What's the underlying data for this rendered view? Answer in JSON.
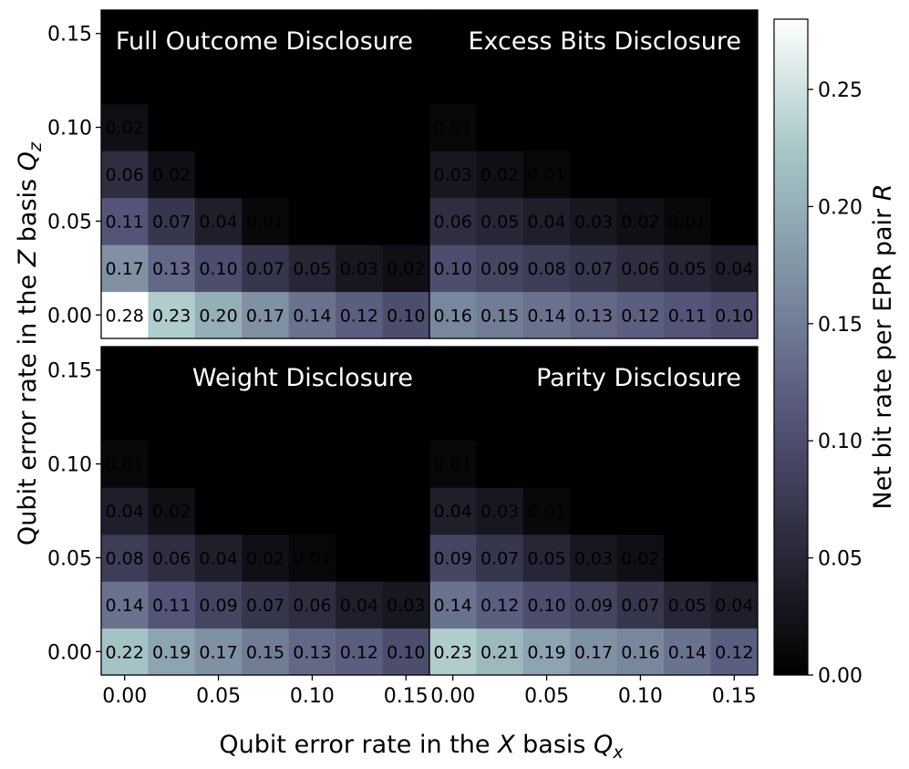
{
  "chart_data": {
    "type": "heatmap",
    "x_ticks": [
      "0.00",
      "0.05",
      "0.10",
      "0.15"
    ],
    "y_ticks": [
      "0.00",
      "0.05",
      "0.10",
      "0.15"
    ],
    "xlabel_prefix": "Qubit error rate in the ",
    "xlabel_var": "X",
    "xlabel_mid": " basis ",
    "xlabel_sym": "Q",
    "xlabel_sub": "x",
    "ylabel_prefix": "Qubit error rate in the ",
    "ylabel_var": "Z",
    "ylabel_mid": " basis ",
    "ylabel_sym": "Q",
    "ylabel_sub": "z",
    "colorbar": {
      "label_text": "Net bit rate per EPR pair ",
      "label_var": "R",
      "min": 0.0,
      "max": 0.28,
      "ticks": [
        "0.00",
        "0.05",
        "0.10",
        "0.15",
        "0.20",
        "0.25"
      ],
      "colormap": [
        "#000000",
        "#2b2b3c",
        "#56567a",
        "#7d8fa2",
        "#a7c7c7",
        "#ffffff"
      ]
    },
    "panels": [
      {
        "title": "Full Outcome Disclosure",
        "rows": [
          [
            0.28,
            0.23,
            0.2,
            0.17,
            0.14,
            0.12,
            0.1
          ],
          [
            0.17,
            0.13,
            0.1,
            0.07,
            0.05,
            0.03,
            0.02
          ],
          [
            0.11,
            0.07,
            0.04,
            0.01,
            0.0,
            0.0,
            0.0
          ],
          [
            0.06,
            0.02,
            0.0,
            0.0,
            0.0,
            0.0,
            0.0
          ],
          [
            0.02,
            0.0,
            0.0,
            0.0,
            0.0,
            0.0,
            0.0
          ],
          [
            0.0,
            0.0,
            0.0,
            0.0,
            0.0,
            0.0,
            0.0
          ],
          [
            0.0,
            0.0,
            0.0,
            0.0,
            0.0,
            0.0,
            0.0
          ]
        ],
        "labels": [
          [
            "0.28",
            "0.23",
            "0.20",
            "0.17",
            "0.14",
            "0.12",
            "0.10"
          ],
          [
            "0.17",
            "0.13",
            "0.10",
            "0.07",
            "0.05",
            "0.03",
            "0.02"
          ],
          [
            "0.11",
            "0.07",
            "0.04",
            "0.01",
            "",
            "",
            ""
          ],
          [
            "0.06",
            "0.02",
            "",
            "",
            "",
            "",
            ""
          ],
          [
            "0.02",
            "",
            "",
            "",
            "",
            "",
            ""
          ],
          [
            "",
            "",
            "",
            "",
            "",
            "",
            ""
          ],
          [
            "",
            "",
            "",
            "",
            "",
            "",
            ""
          ]
        ]
      },
      {
        "title": "Excess Bits Disclosure",
        "rows": [
          [
            0.16,
            0.15,
            0.14,
            0.13,
            0.12,
            0.11,
            0.1
          ],
          [
            0.1,
            0.09,
            0.08,
            0.07,
            0.06,
            0.05,
            0.04
          ],
          [
            0.06,
            0.05,
            0.04,
            0.03,
            0.02,
            0.01,
            0.0
          ],
          [
            0.03,
            0.02,
            0.01,
            0.0,
            0.0,
            0.0,
            0.0
          ],
          [
            0.01,
            0.0,
            0.0,
            0.0,
            0.0,
            0.0,
            0.0
          ],
          [
            0.0,
            0.0,
            0.0,
            0.0,
            0.0,
            0.0,
            0.0
          ],
          [
            0.0,
            0.0,
            0.0,
            0.0,
            0.0,
            0.0,
            0.0
          ]
        ],
        "labels": [
          [
            "0.16",
            "0.15",
            "0.14",
            "0.13",
            "0.12",
            "0.11",
            "0.10"
          ],
          [
            "0.10",
            "0.09",
            "0.08",
            "0.07",
            "0.06",
            "0.05",
            "0.04"
          ],
          [
            "0.06",
            "0.05",
            "0.04",
            "0.03",
            "0.02",
            "0.01",
            ""
          ],
          [
            "0.03",
            "0.02",
            "0.01",
            "",
            "",
            "",
            ""
          ],
          [
            "0.01",
            "",
            "",
            "",
            "",
            "",
            ""
          ],
          [
            "",
            "",
            "",
            "",
            "",
            "",
            ""
          ],
          [
            "",
            "",
            "",
            "",
            "",
            "",
            ""
          ]
        ]
      },
      {
        "title": "Weight Disclosure",
        "rows": [
          [
            0.22,
            0.19,
            0.17,
            0.15,
            0.13,
            0.12,
            0.1
          ],
          [
            0.14,
            0.11,
            0.09,
            0.07,
            0.06,
            0.04,
            0.03
          ],
          [
            0.08,
            0.06,
            0.04,
            0.02,
            0.01,
            0.0,
            0.0
          ],
          [
            0.04,
            0.02,
            0.0,
            0.0,
            0.0,
            0.0,
            0.0
          ],
          [
            0.01,
            0.0,
            0.0,
            0.0,
            0.0,
            0.0,
            0.0
          ],
          [
            0.0,
            0.0,
            0.0,
            0.0,
            0.0,
            0.0,
            0.0
          ],
          [
            0.0,
            0.0,
            0.0,
            0.0,
            0.0,
            0.0,
            0.0
          ]
        ],
        "labels": [
          [
            "0.22",
            "0.19",
            "0.17",
            "0.15",
            "0.13",
            "0.12",
            "0.10"
          ],
          [
            "0.14",
            "0.11",
            "0.09",
            "0.07",
            "0.06",
            "0.04",
            "0.03"
          ],
          [
            "0.08",
            "0.06",
            "0.04",
            "0.02",
            "0.01",
            "",
            ""
          ],
          [
            "0.04",
            "0.02",
            "",
            "",
            "",
            "",
            ""
          ],
          [
            "0.01",
            "",
            "",
            "",
            "",
            "",
            ""
          ],
          [
            "",
            "",
            "",
            "",
            "",
            "",
            ""
          ],
          [
            "",
            "",
            "",
            "",
            "",
            "",
            ""
          ]
        ]
      },
      {
        "title": "Parity Disclosure",
        "rows": [
          [
            0.23,
            0.21,
            0.19,
            0.17,
            0.16,
            0.14,
            0.12
          ],
          [
            0.14,
            0.12,
            0.1,
            0.09,
            0.07,
            0.05,
            0.04
          ],
          [
            0.09,
            0.07,
            0.05,
            0.03,
            0.02,
            0.0,
            0.0
          ],
          [
            0.04,
            0.03,
            0.01,
            0.0,
            0.0,
            0.0,
            0.0
          ],
          [
            0.01,
            0.0,
            0.0,
            0.0,
            0.0,
            0.0,
            0.0
          ],
          [
            0.0,
            0.0,
            0.0,
            0.0,
            0.0,
            0.0,
            0.0
          ],
          [
            0.0,
            0.0,
            0.0,
            0.0,
            0.0,
            0.0,
            0.0
          ]
        ],
        "labels": [
          [
            "0.23",
            "0.21",
            "0.19",
            "0.17",
            "0.16",
            "0.14",
            "0.12"
          ],
          [
            "0.14",
            "0.12",
            "0.10",
            "0.09",
            "0.07",
            "0.05",
            "0.04"
          ],
          [
            "0.09",
            "0.07",
            "0.05",
            "0.03",
            "0.02",
            "",
            ""
          ],
          [
            "0.04",
            "0.03",
            "0.01",
            "",
            "",
            "",
            ""
          ],
          [
            "0.01",
            "",
            "",
            "",
            "",
            "",
            ""
          ],
          [
            "",
            "",
            "",
            "",
            "",
            "",
            ""
          ],
          [
            "",
            "",
            "",
            "",
            "",
            "",
            ""
          ]
        ]
      }
    ]
  }
}
